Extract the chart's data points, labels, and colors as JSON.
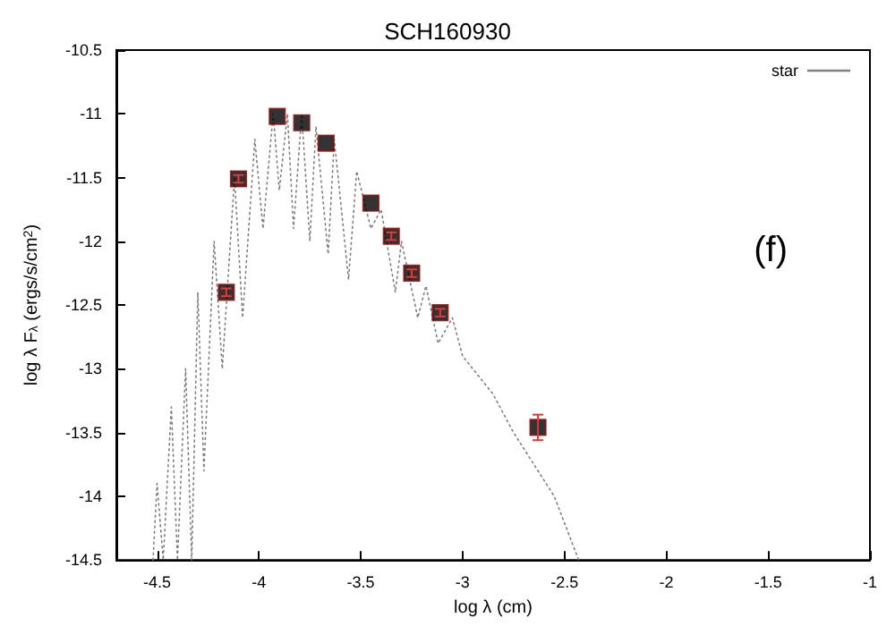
{
  "chart_data": {
    "type": "scatter",
    "title": "SCH160930",
    "xlabel": "log λ (cm)",
    "ylabel": "log λ F$_{λ}$ (ergs/s/cm$^{2}$)",
    "xlim": [
      -4.7,
      -1
    ],
    "xticks": [
      -4.5,
      -4,
      -3.5,
      -3,
      -2.5,
      -2,
      -1.5,
      -1
    ],
    "ylim": [
      -14.5,
      -10.5
    ],
    "yticks": [
      -14.5,
      -14,
      -13.5,
      -13,
      -12.5,
      -12,
      -11.5,
      -11,
      -10.5
    ],
    "grid": false,
    "legend": "top right",
    "annotations": [
      "(f)"
    ],
    "series": [
      {
        "name": "star",
        "type": "line",
        "color": "#808080",
        "line_style": "dotted",
        "marker": "none",
        "x": [
          -4.52,
          -4.5,
          -4.47,
          -4.43,
          -4.4,
          -4.36,
          -4.33,
          -4.3,
          -4.27,
          -4.22,
          -4.18,
          -4.12,
          -4.08,
          -4.02,
          -3.98,
          -3.93,
          -3.9,
          -3.86,
          -3.83,
          -3.79,
          -3.75,
          -3.72,
          -3.66,
          -3.63,
          -3.56,
          -3.52,
          -3.45,
          -3.4,
          -3.33,
          -3.3,
          -3.22,
          -3.18,
          -3.12,
          -3.05,
          -3.0,
          -2.95,
          -2.85,
          -2.75,
          -2.65,
          -2.55,
          -2.43
        ],
        "values": [
          -14.5,
          -13.9,
          -14.5,
          -13.3,
          -14.5,
          -13.0,
          -14.5,
          -12.4,
          -13.8,
          -12.0,
          -13.0,
          -11.5,
          -12.6,
          -11.2,
          -11.9,
          -11.0,
          -11.6,
          -11.0,
          -11.9,
          -11.0,
          -12.0,
          -11.1,
          -12.1,
          -11.2,
          -12.3,
          -11.45,
          -11.9,
          -11.75,
          -12.4,
          -12.0,
          -12.6,
          -12.35,
          -12.8,
          -12.6,
          -12.9,
          -13.0,
          -13.2,
          -13.5,
          -13.75,
          -14.0,
          -14.5
        ]
      },
      {
        "color": "#000000",
        "marker": "square",
        "x": [
          -4.16,
          -4.1,
          -3.91,
          -3.79,
          -3.67,
          -3.45,
          -3.35,
          -3.25,
          -3.11,
          -2.63
        ],
        "values": [
          -12.4,
          -11.51,
          -11.02,
          -11.07,
          -11.23,
          -11.7,
          -11.96,
          -12.25,
          -12.56,
          -13.46
        ],
        "errors": [
          0.03,
          0.03,
          null,
          null,
          null,
          null,
          0.03,
          0.03,
          0.03,
          0.1
        ]
      }
    ]
  }
}
